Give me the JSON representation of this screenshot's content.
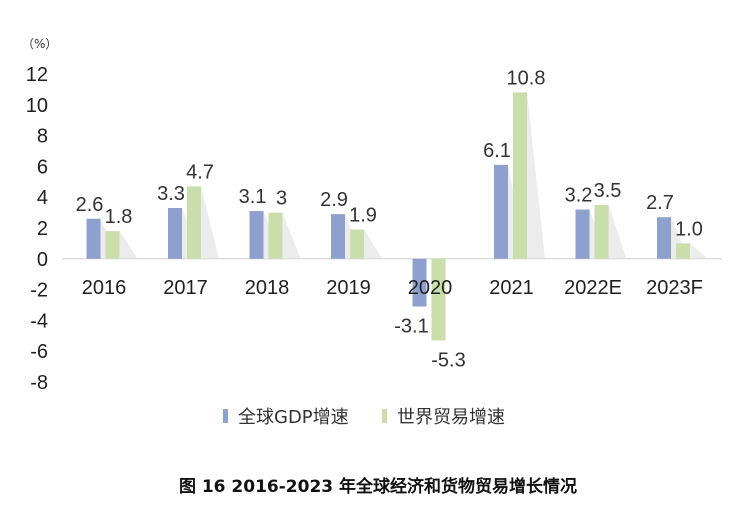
{
  "chart_data": {
    "type": "bar",
    "caption": "图 16 2016-2023 年全球经济和货物贸易增长情况",
    "y_unit": "（%）",
    "categories": [
      "2016",
      "2017",
      "2018",
      "2019",
      "2020",
      "2021",
      "2022E",
      "2023F"
    ],
    "series": [
      {
        "name": "全球GDP增速",
        "color": "#8EA0CE",
        "values": [
          2.6,
          3.3,
          3.1,
          2.9,
          -3.1,
          6.1,
          3.2,
          2.7
        ],
        "labels": [
          "2.6",
          "3.3",
          "3.1",
          "2.9",
          "-3.1",
          "6.1",
          "3.2",
          "2.7"
        ]
      },
      {
        "name": "世界贸易增速",
        "color": "#C9DEAA",
        "values": [
          1.8,
          4.7,
          3.0,
          1.9,
          -5.3,
          10.8,
          3.5,
          1.0
        ],
        "labels": [
          "1.8",
          "4.7",
          "3",
          "1.9",
          "-5.3",
          "10.8",
          "3.5",
          "1.0"
        ]
      }
    ],
    "ylim": [
      -8,
      12
    ],
    "yticks": [
      12,
      10,
      8,
      6,
      4,
      2,
      0,
      -2,
      -4,
      -6,
      -8
    ],
    "grid": false,
    "legend_position": "bottom"
  }
}
